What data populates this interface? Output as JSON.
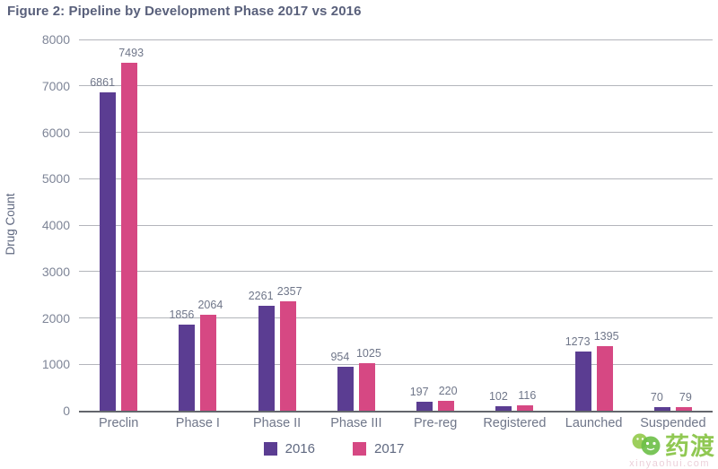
{
  "figure": {
    "title": "Figure 2: Pipeline by Development Phase 2017 vs 2016"
  },
  "chart_data": {
    "type": "bar",
    "title": "Figure 2: Pipeline by Development Phase 2017 vs 2016",
    "xlabel": "",
    "ylabel": "Drug Count",
    "ylim": [
      0,
      8000
    ],
    "ytick_step": 1000,
    "grid": true,
    "legend_position": "bottom-center",
    "value_labels_shown": true,
    "categories": [
      "Preclin",
      "Phase I",
      "Phase II",
      "Phase III",
      "Pre-reg",
      "Registered",
      "Launched",
      "Suspended"
    ],
    "series": [
      {
        "name": "2016",
        "color": "#5b3d92",
        "values": [
          6861,
          1856,
          2261,
          954,
          197,
          102,
          1273,
          70
        ]
      },
      {
        "name": "2017",
        "color": "#d64883",
        "values": [
          7493,
          2064,
          2357,
          1025,
          220,
          116,
          1395,
          79
        ]
      }
    ]
  },
  "colors": {
    "title_text": "#59607b",
    "axis_text": "#7e8597",
    "value_label_text": "#6f7689",
    "gridline": "#b3b5bb",
    "baseline": "#63666c",
    "series_2016": "#5b3d92",
    "series_2017": "#d64883",
    "watermark_green": "#85c341"
  },
  "watermark": {
    "brand_text": "药渡",
    "sub_text": "xinyaohui.com"
  }
}
